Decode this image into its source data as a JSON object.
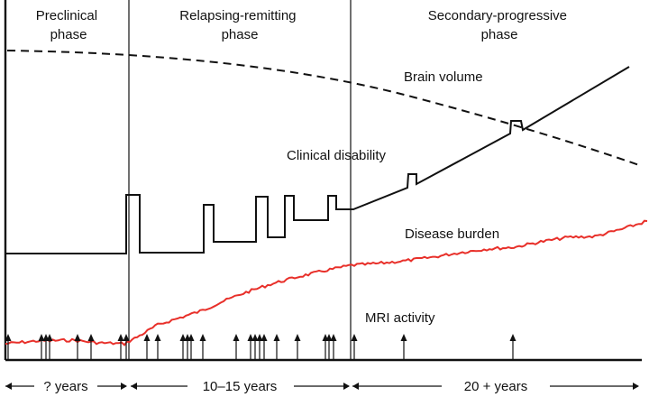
{
  "phases": [
    {
      "line1": "Preclinical",
      "line2": "phase"
    },
    {
      "line1": "Relapsing-remitting",
      "line2": "phase"
    },
    {
      "line1": "Secondary-progressive",
      "line2": "phase"
    }
  ],
  "curves": {
    "brain_volume": "Brain volume",
    "clinical_disability": "Clinical disability",
    "disease_burden": "Disease burden",
    "mri_activity": "MRI activity"
  },
  "timeline": {
    "preclinical": "? years",
    "relapsing_remitting": "10–15 years",
    "secondary_progressive": "20 + years"
  },
  "colors": {
    "disease_burden": "#e8302a",
    "lines": "#111111"
  }
}
